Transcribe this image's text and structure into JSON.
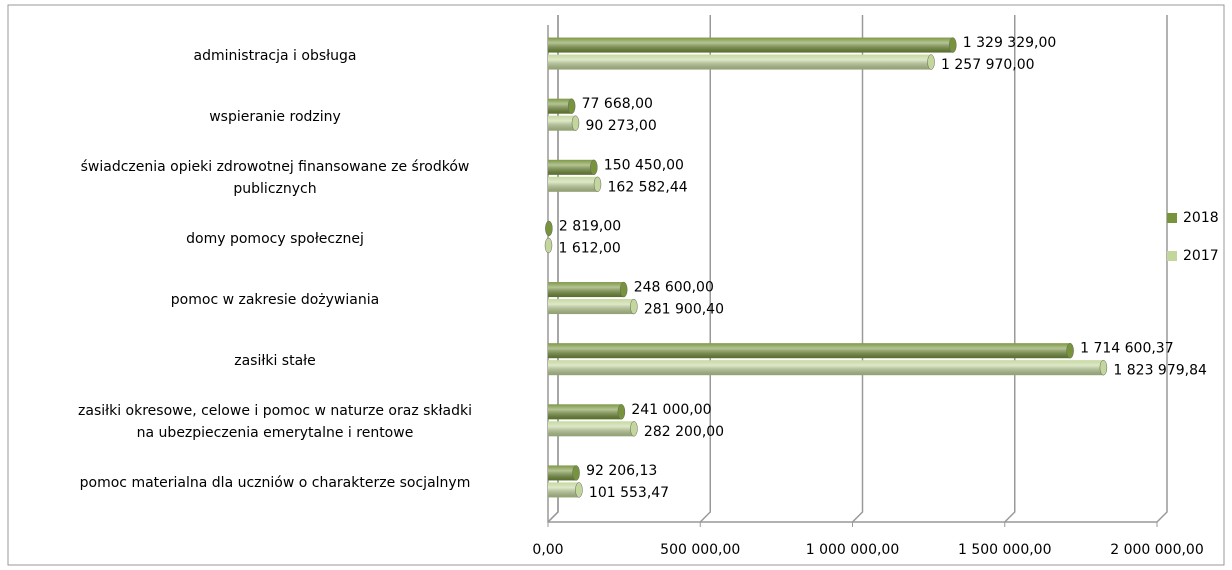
{
  "chart_data": {
    "type": "bar",
    "orientation": "horizontal",
    "categories": [
      "administracja i obsługa",
      "wspieranie rodziny",
      "świadczenia opieki zdrowotnej finansowane ze środków\npublicznych",
      "domy pomocy społecznej",
      "pomoc w zakresie dożywiania",
      "zasiłki stałe",
      "zasiłki okresowe, celowe i pomoc w naturze oraz składki\nna ubezpieczenia emerytalne i rentowe",
      "pomoc materialna dla uczniów o charakterze socjalnym"
    ],
    "series": [
      {
        "name": "2018",
        "color": "#77933c",
        "values": [
          1329329,
          77668,
          150450,
          2819,
          248600,
          1714600.37,
          241000,
          92206.13
        ],
        "value_labels": [
          "1 329 329,00",
          "77 668,00",
          "150 450,00",
          "2 819,00",
          "248 600,00",
          "1 714 600,37",
          "241 000,00",
          "92 206,13"
        ]
      },
      {
        "name": "2017",
        "color": "#c3d69b",
        "values": [
          1257970,
          90273,
          162582.44,
          1612,
          281900.4,
          1823979.84,
          282200,
          101553.47
        ],
        "value_labels": [
          "1 257 970,00",
          "90 273,00",
          "162 582,44",
          "1 612,00",
          "281 900,40",
          "1 823 979,84",
          "282 200,00",
          "101 553,47"
        ]
      }
    ],
    "xlim": [
      0,
      2000000
    ],
    "xticks": [
      {
        "value": 0,
        "label": "0,00"
      },
      {
        "value": 500000,
        "label": "500 000,00"
      },
      {
        "value": 1000000,
        "label": "1 000 000,00"
      },
      {
        "value": 1500000,
        "label": "1 500 000,00"
      },
      {
        "value": 2000000,
        "label": "2 000 000,00"
      }
    ],
    "grid": true,
    "legend": "right"
  }
}
